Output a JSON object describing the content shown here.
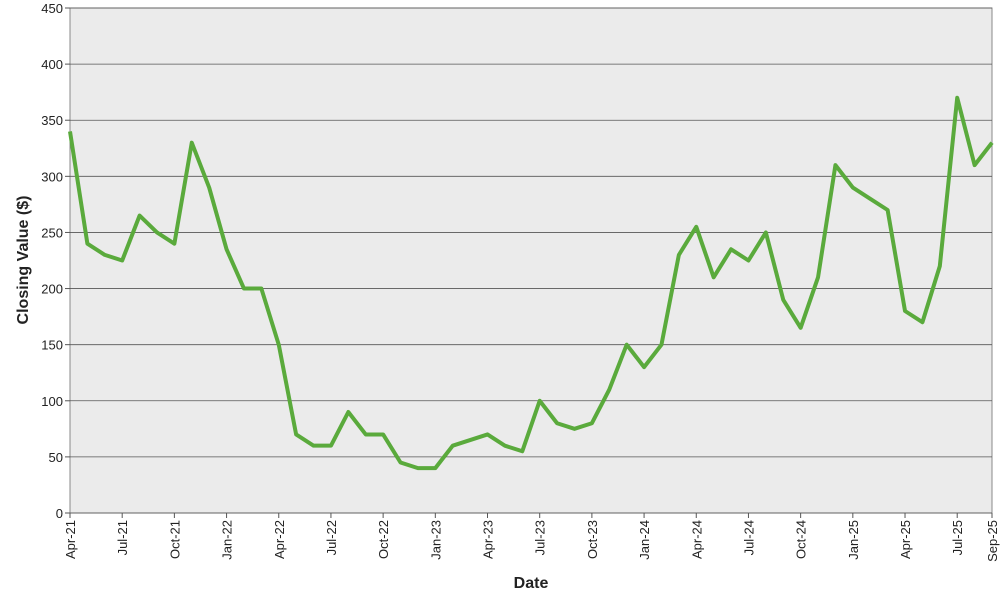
{
  "chart_data": {
    "type": "line",
    "x_label": "Date",
    "y_label": "Closing Value ($)",
    "x": [
      "2021-04",
      "2021-05",
      "2021-06",
      "2021-07",
      "2021-08",
      "2021-09",
      "2021-10",
      "2021-11",
      "2021-12",
      "2022-01",
      "2022-02",
      "2022-03",
      "2022-04",
      "2022-05",
      "2022-06",
      "2022-07",
      "2022-08",
      "2022-09",
      "2022-10",
      "2022-11",
      "2022-12",
      "2023-01",
      "2023-02",
      "2023-03",
      "2023-04",
      "2023-05",
      "2023-06",
      "2023-07",
      "2023-08",
      "2023-09",
      "2023-10",
      "2023-11",
      "2023-12",
      "2024-01",
      "2024-02",
      "2024-03",
      "2024-04",
      "2024-05",
      "2024-06",
      "2024-07",
      "2024-08",
      "2024-09",
      "2024-10",
      "2024-11",
      "2024-12",
      "2025-01",
      "2025-02",
      "2025-03",
      "2025-04",
      "2025-05",
      "2025-06",
      "2025-07",
      "2025-08",
      "2025-09"
    ],
    "series": [
      {
        "name": "Closing Value",
        "color": "#5aaa3c",
        "values": [
          340,
          240,
          230,
          225,
          265,
          250,
          240,
          330,
          290,
          235,
          200,
          200,
          150,
          70,
          60,
          60,
          90,
          70,
          70,
          45,
          40,
          40,
          60,
          65,
          70,
          60,
          55,
          100,
          80,
          75,
          80,
          110,
          150,
          130,
          150,
          230,
          255,
          210,
          235,
          225,
          250,
          190,
          165,
          210,
          310,
          290,
          280,
          270,
          180,
          170,
          220,
          370,
          310,
          330
        ]
      }
    ],
    "xlim": [
      "2021-04",
      "2025-09"
    ],
    "xticks": [
      {
        "value": "2021-04",
        "label": "Apr-21"
      },
      {
        "value": "2021-07",
        "label": "Jul-21"
      },
      {
        "value": "2021-10",
        "label": "Oct-21"
      },
      {
        "value": "2022-01",
        "label": "Jan-22"
      },
      {
        "value": "2022-04",
        "label": "Apr-22"
      },
      {
        "value": "2022-07",
        "label": "Jul-22"
      },
      {
        "value": "2022-10",
        "label": "Oct-22"
      },
      {
        "value": "2023-01",
        "label": "Jan-23"
      },
      {
        "value": "2023-04",
        "label": "Apr-23"
      },
      {
        "value": "2023-07",
        "label": "Jul-23"
      },
      {
        "value": "2023-10",
        "label": "Oct-23"
      },
      {
        "value": "2024-01",
        "label": "Jan-24"
      },
      {
        "value": "2024-04",
        "label": "Apr-24"
      },
      {
        "value": "2024-07",
        "label": "Jul-24"
      },
      {
        "value": "2024-10",
        "label": "Oct-24"
      },
      {
        "value": "2025-01",
        "label": "Jan-25"
      },
      {
        "value": "2025-04",
        "label": "Apr-25"
      },
      {
        "value": "2025-07",
        "label": "Jul-25"
      },
      {
        "value": "2025-09",
        "label": "Sep-25"
      }
    ],
    "ylim": [
      0,
      450
    ],
    "yticks": [
      0,
      50,
      100,
      150,
      200,
      250,
      300,
      350,
      400,
      450
    ],
    "grid": true
  }
}
